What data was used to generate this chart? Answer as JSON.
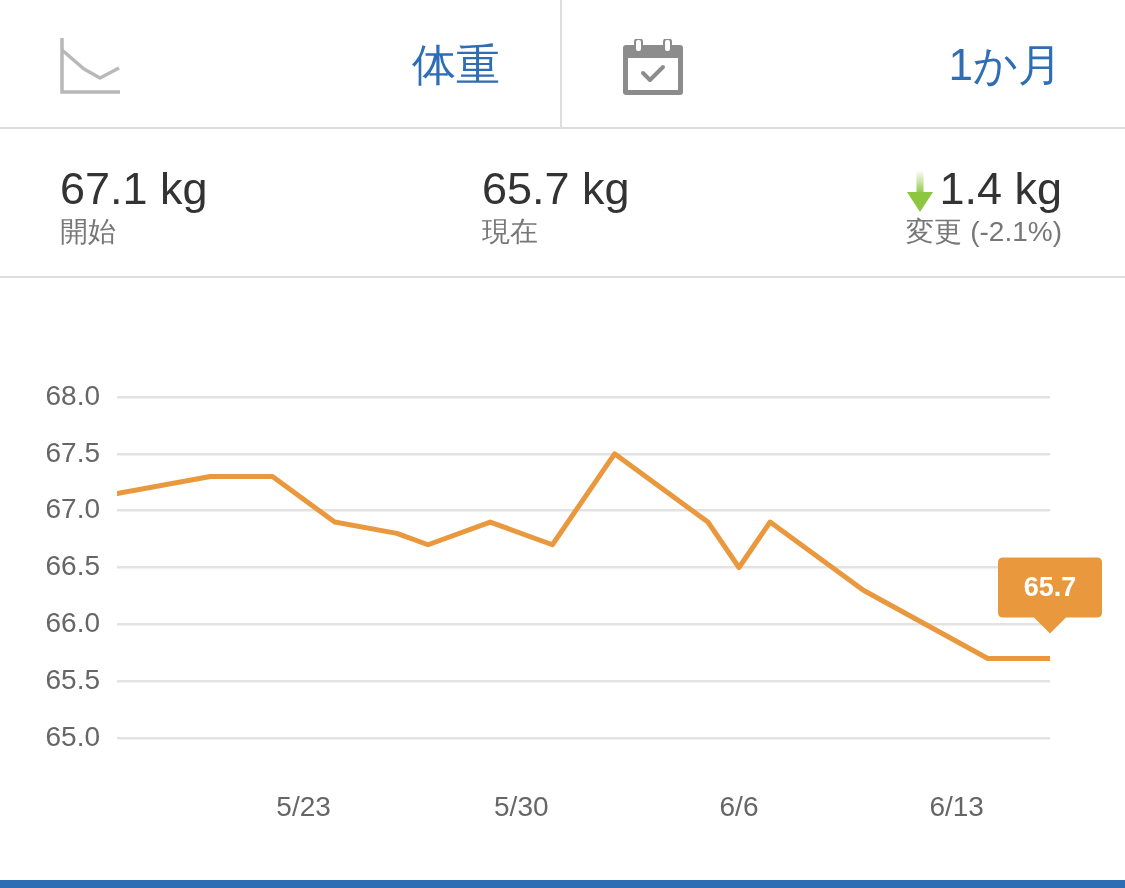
{
  "chart_data": {
    "type": "line",
    "title": "体重",
    "subtitle": "1か月",
    "annotations": [
      "67.1 kg",
      "開始",
      "65.7 kg",
      "現在",
      "1.4 kg",
      "変更 (-2.1%)",
      {
        "text": "65.7",
        "x": "--06-16",
        "y": 65.7
      }
    ],
    "x": [
      "--05-17",
      "--05-20",
      "--05-22",
      "--05-24",
      "--05-26",
      "--05-27",
      "--05-29",
      "--05-31",
      "--06-02",
      "--06-05",
      "--06-06",
      "--06-07",
      "--06-10",
      "--06-14",
      "--06-16"
    ],
    "values": [
      67.15,
      67.3,
      67.3,
      66.9,
      66.8,
      66.7,
      66.9,
      66.7,
      67.5,
      66.9,
      66.5,
      66.9,
      66.3,
      65.7,
      65.7
    ],
    "color": "#e9983e",
    "xlim": [
      "--05-17",
      "--06-16"
    ],
    "xticks": [
      {
        "value": "--05-23",
        "label": "5/23"
      },
      {
        "value": "--05-30",
        "label": "5/30"
      },
      {
        "value": "--06-06",
        "label": "6/6"
      },
      {
        "value": "--06-13",
        "label": "6/13"
      }
    ],
    "ylim": [
      65,
      68
    ],
    "yticks": [
      {
        "value": 65,
        "label": "65.0"
      },
      65.5,
      {
        "value": 66,
        "label": "66.0"
      },
      66.5,
      {
        "value": 67,
        "label": "67.0"
      },
      67.5,
      {
        "value": 68,
        "label": "68.0"
      }
    ],
    "grid": "y"
  }
}
